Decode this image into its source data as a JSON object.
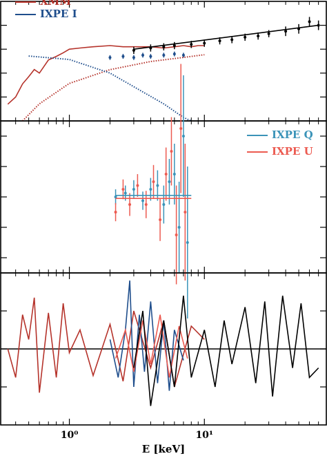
{
  "chart_data": [
    {
      "type": "line",
      "xscale": "log",
      "xlim": [
        0.31,
        80
      ],
      "ylim": [
        0,
        10
      ],
      "yticks": [
        2,
        4,
        6,
        8
      ],
      "xticks": [
        {
          "value": 1,
          "label": "10⁰"
        },
        {
          "value": 10,
          "label": "10¹"
        }
      ],
      "xminorticks": [
        0.4,
        0.5,
        0.6,
        0.7,
        0.8,
        0.9,
        2,
        3,
        4,
        5,
        6,
        7,
        8,
        9,
        20,
        30,
        40,
        50,
        60,
        70,
        80
      ],
      "legend": "upper left",
      "series": [
        {
          "name": "XMM",
          "color": "#b5322a",
          "style": "line",
          "x": [
            0.35,
            0.4,
            0.45,
            0.5,
            0.55,
            0.6,
            0.7,
            0.8,
            0.9,
            1.0,
            1.2,
            1.5,
            2,
            2.5,
            3,
            4,
            5,
            6,
            7,
            8,
            9,
            10
          ],
          "values": [
            1.4,
            2.0,
            3.1,
            3.7,
            4.3,
            4.0,
            5.1,
            5.4,
            5.7,
            6.0,
            6.1,
            6.2,
            6.3,
            6.2,
            6.2,
            6.2,
            6.1,
            6.2,
            6.3,
            6.2,
            6.3,
            6.3
          ]
        },
        {
          "name": "IXPE I",
          "color": "#1f4e8c",
          "style": "points",
          "x": [
            2,
            2.5,
            3,
            3.5,
            4,
            5,
            6,
            7
          ],
          "values": [
            5.3,
            5.4,
            5.3,
            5.5,
            5.4,
            5.5,
            5.6,
            5.5
          ],
          "errors": [
            0.2,
            0.2,
            0.2,
            0.2,
            0.2,
            0.2,
            0.2,
            0.2
          ]
        },
        {
          "color": "#000000",
          "style": "points",
          "x": [
            3,
            4,
            5,
            6,
            8,
            10,
            13,
            16,
            20,
            25,
            30,
            40,
            50,
            60,
            70
          ],
          "values": [
            5.9,
            6.1,
            6.2,
            6.3,
            6.4,
            6.5,
            6.7,
            6.8,
            7.0,
            7.1,
            7.3,
            7.5,
            7.7,
            8.3,
            8.0
          ],
          "errors": [
            0.3,
            0.3,
            0.3,
            0.3,
            0.3,
            0.3,
            0.3,
            0.3,
            0.3,
            0.3,
            0.3,
            0.4,
            0.4,
            0.4,
            0.4
          ]
        },
        {
          "color": "#000000",
          "style": "line",
          "x": [
            3,
            70
          ],
          "values": [
            6.0,
            8.0
          ]
        },
        {
          "color": "#b5322a",
          "style": "dotted",
          "x": [
            0.45,
            0.6,
            1,
            2,
            4,
            7,
            10
          ],
          "values": [
            0,
            1.43,
            3.14,
            4.29,
            4.97,
            5.31,
            5.54
          ]
        },
        {
          "color": "#1f4e8c",
          "style": "dotted",
          "x": [
            0.5,
            1,
            2,
            3,
            5,
            7,
            8
          ],
          "values": [
            5.43,
            5.14,
            4.0,
            2.86,
            1.43,
            0.29,
            0
          ]
        }
      ]
    },
    {
      "type": "errorbar",
      "xscale": "log",
      "xlim": [
        0.31,
        80
      ],
      "ylim": [
        -1,
        1
      ],
      "yticks": [
        -0.8,
        -0.4,
        0,
        0.4,
        0.8
      ],
      "legend": "upper right",
      "series": [
        {
          "name": "IXPE Q",
          "color": "#3a93b8",
          "style": "points",
          "x": [
            2.2,
            2.6,
            3,
            3.5,
            4,
            4.5,
            5,
            5.5,
            6,
            6.5,
            7,
            7.5
          ],
          "values": [
            0.0,
            0.05,
            0.1,
            -0.05,
            0.1,
            0.15,
            -0.1,
            0.2,
            0.3,
            -0.4,
            0.8,
            -0.6
          ],
          "errors": [
            0.1,
            0.1,
            0.12,
            0.12,
            0.15,
            0.2,
            0.25,
            0.3,
            0.4,
            0.6,
            0.8,
            1.0
          ]
        },
        {
          "name": "IXPE U",
          "color": "#ec5a50",
          "style": "points",
          "x": [
            2.2,
            2.5,
            2.8,
            3.2,
            3.7,
            4.2,
            4.7,
            5.2,
            5.7,
            6.2,
            6.7,
            7.2
          ],
          "values": [
            -0.2,
            0.1,
            -0.1,
            0.15,
            -0.1,
            0.2,
            -0.3,
            0.3,
            0.6,
            -0.5,
            0.9,
            -0.2
          ],
          "errors": [
            0.12,
            0.13,
            0.15,
            0.15,
            0.18,
            0.22,
            0.28,
            0.35,
            0.45,
            0.65,
            0.85,
            0.9
          ]
        },
        {
          "color": "#3a93b8",
          "style": "line",
          "x": [
            2.2,
            8
          ],
          "values": [
            0.02,
            0.02
          ]
        },
        {
          "color": "#ec5a50",
          "style": "line",
          "x": [
            2.2,
            8
          ],
          "values": [
            -0.02,
            -0.02
          ]
        }
      ]
    },
    {
      "type": "line",
      "xscale": "log",
      "xlim": [
        0.31,
        80
      ],
      "ylim": [
        -4,
        4
      ],
      "yticks": [
        -2,
        0,
        2
      ],
      "hline": 0,
      "xlabel": "E [keV]",
      "series": [
        {
          "color": "#b5322a",
          "style": "line",
          "x": [
            0.35,
            0.4,
            0.45,
            0.5,
            0.55,
            0.6,
            0.7,
            0.8,
            0.9,
            1.0,
            1.2,
            1.5,
            2,
            2.5,
            3,
            4,
            5,
            6,
            8,
            10
          ],
          "values": [
            0,
            -1.5,
            1.8,
            0.5,
            2.7,
            -2.3,
            1.9,
            -1.5,
            2.4,
            -0.2,
            1.0,
            -1.4,
            1.3,
            -1.7,
            2.0,
            -1.0,
            1.5,
            -2.0,
            1.2,
            0.5
          ]
        },
        {
          "color": "#1f4e8c",
          "style": "line",
          "x": [
            2,
            2.3,
            2.6,
            2.8,
            3,
            3.3,
            3.6,
            4,
            4.5,
            5,
            5.5,
            6,
            7
          ],
          "values": [
            0.5,
            -1.5,
            1.0,
            3.6,
            -2.0,
            1.8,
            -1.2,
            2.5,
            -1.8,
            1.5,
            -2.2,
            1.0,
            -0.6
          ]
        },
        {
          "color": "#ec5a50",
          "style": "line",
          "x": [
            2.2,
            2.6,
            3,
            3.5,
            4,
            4.7,
            5.5,
            6.5,
            7.5
          ],
          "values": [
            -0.5,
            1.0,
            -1.2,
            1.5,
            -0.8,
            1.8,
            -1.5,
            1.2,
            -0.5
          ]
        },
        {
          "color": "#000000",
          "style": "line",
          "x": [
            3,
            3.5,
            4,
            5,
            6,
            7,
            8,
            10,
            12,
            14,
            16,
            20,
            24,
            28,
            32,
            38,
            45,
            52,
            60,
            70
          ],
          "values": [
            -1.0,
            2.0,
            -3.0,
            1.5,
            -2.0,
            2.8,
            -1.5,
            1.0,
            -2.0,
            1.5,
            -0.8,
            2.2,
            -1.8,
            2.5,
            -2.5,
            2.8,
            -1.0,
            2.4,
            -1.5,
            -1.0
          ]
        }
      ]
    }
  ]
}
